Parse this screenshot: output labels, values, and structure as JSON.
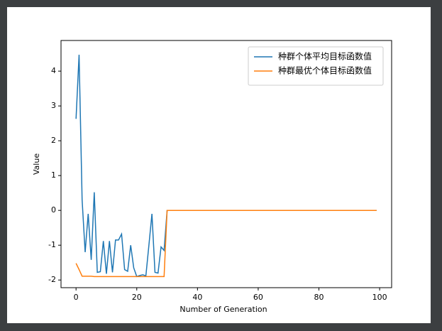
{
  "chart_data": {
    "type": "line",
    "xlabel": "Number of Generation",
    "ylabel": "Value",
    "x": [
      0,
      1,
      2,
      3,
      4,
      5,
      6,
      7,
      8,
      9,
      10,
      11,
      12,
      13,
      14,
      15,
      16,
      17,
      18,
      19,
      20,
      21,
      22,
      23,
      24,
      25,
      26,
      27,
      28,
      29,
      30,
      31,
      32,
      33,
      34,
      35,
      36,
      37,
      38,
      39,
      40,
      41,
      42,
      43,
      44,
      45,
      46,
      47,
      48,
      49,
      50,
      51,
      52,
      53,
      54,
      55,
      56,
      57,
      58,
      59,
      60,
      61,
      62,
      63,
      64,
      65,
      66,
      67,
      68,
      69,
      70,
      71,
      72,
      73,
      74,
      75,
      76,
      77,
      78,
      79,
      80,
      81,
      82,
      83,
      84,
      85,
      86,
      87,
      88,
      89,
      90,
      91,
      92,
      93,
      94,
      95,
      96,
      97,
      98,
      99
    ],
    "series": [
      {
        "name": "种群个体平均目标函数值",
        "color": "#1f77b4",
        "values": [
          2.63,
          4.47,
          0.3,
          -1.2,
          -0.1,
          -1.42,
          0.52,
          -1.78,
          -1.76,
          -0.88,
          -1.82,
          -0.88,
          -1.78,
          -0.85,
          -0.85,
          -0.68,
          -1.7,
          -1.75,
          -1.0,
          -1.65,
          -1.9,
          -1.87,
          -1.85,
          -1.88,
          -1.0,
          -0.1,
          -1.78,
          -1.8,
          -1.05,
          -1.15,
          0,
          0,
          0,
          0,
          0,
          0,
          0,
          0,
          0,
          0,
          0,
          0,
          0,
          0,
          0,
          0,
          0,
          0,
          0,
          0,
          0,
          0,
          0,
          0,
          0,
          0,
          0,
          0,
          0,
          0,
          0,
          0,
          0,
          0,
          0,
          0,
          0,
          0,
          0,
          0,
          0,
          0,
          0,
          0,
          0,
          0,
          0,
          0,
          0,
          0,
          0,
          0,
          0,
          0,
          0,
          0,
          0,
          0,
          0,
          0,
          0,
          0,
          0,
          0,
          0,
          0,
          0,
          0,
          0,
          0
        ]
      },
      {
        "name": "种群最优个体目标函数值",
        "color": "#ff7f0e",
        "values": [
          -1.52,
          -1.7,
          -1.89,
          -1.89,
          -1.89,
          -1.89,
          -1.9,
          -1.9,
          -1.9,
          -1.9,
          -1.9,
          -1.9,
          -1.9,
          -1.9,
          -1.9,
          -1.9,
          -1.9,
          -1.9,
          -1.9,
          -1.9,
          -1.9,
          -1.9,
          -1.9,
          -1.9,
          -1.9,
          -1.9,
          -1.9,
          -1.9,
          -1.9,
          -1.9,
          0,
          0,
          0,
          0,
          0,
          0,
          0,
          0,
          0,
          0,
          0,
          0,
          0,
          0,
          0,
          0,
          0,
          0,
          0,
          0,
          0,
          0,
          0,
          0,
          0,
          0,
          0,
          0,
          0,
          0,
          0,
          0,
          0,
          0,
          0,
          0,
          0,
          0,
          0,
          0,
          0,
          0,
          0,
          0,
          0,
          0,
          0,
          0,
          0,
          0,
          0,
          0,
          0,
          0,
          0,
          0,
          0,
          0,
          0,
          0,
          0,
          0,
          0,
          0,
          0,
          0,
          0,
          0,
          0,
          0
        ]
      }
    ],
    "xlim": [
      -4.95,
      103.95
    ],
    "xticks": [
      0,
      20,
      40,
      60,
      80,
      100
    ],
    "ylim": [
      -2.22,
      4.88
    ],
    "yticks": [
      -2,
      -1,
      0,
      1,
      2,
      3,
      4
    ],
    "grid": false,
    "legend": "upper right"
  }
}
